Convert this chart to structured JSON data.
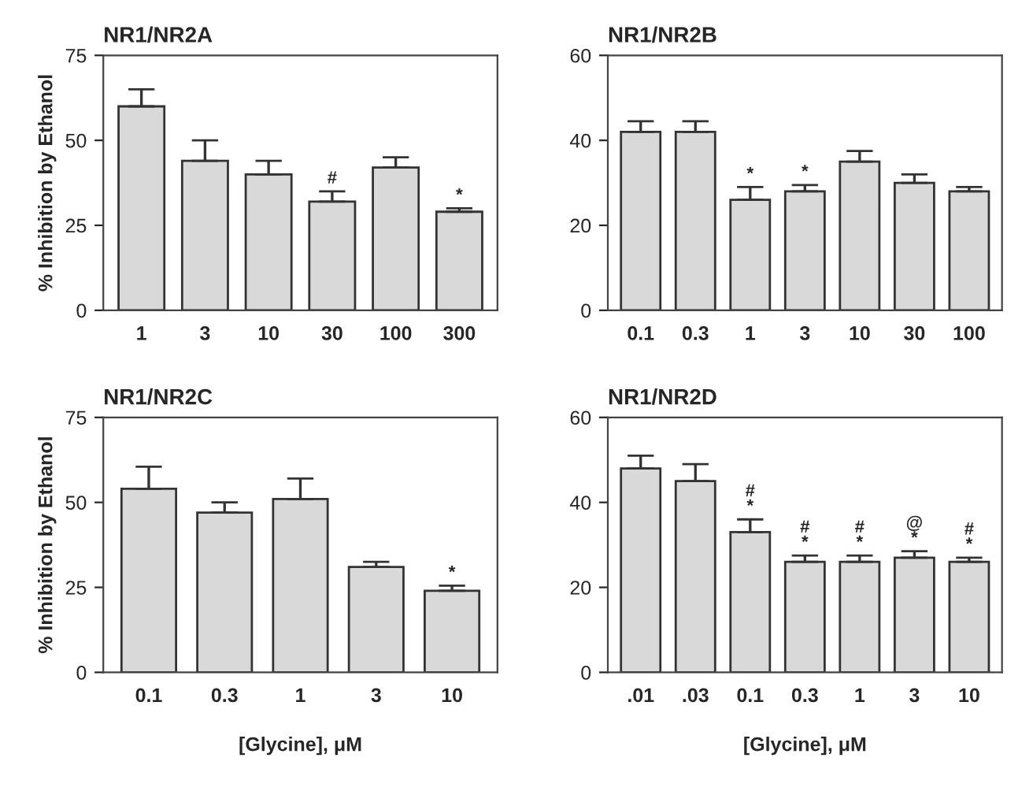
{
  "chart_data": [
    {
      "type": "bar",
      "title": "NR1/NR2A",
      "ylabel": "% Inhibition by Ethanol",
      "categories": [
        "1",
        "3",
        "10",
        "30",
        "100",
        "300"
      ],
      "values": [
        60,
        44,
        40,
        32,
        42,
        29
      ],
      "errors": [
        [
          60,
          65
        ],
        [
          44,
          50
        ],
        [
          40,
          44
        ],
        [
          32,
          35
        ],
        [
          42,
          45
        ],
        [
          29,
          30
        ]
      ],
      "color": "#d9d9d9",
      "ylim": [
        0,
        75
      ],
      "yticks": [
        0,
        25,
        50,
        75
      ],
      "grid": false,
      "annotations": [
        {
          "text": "#",
          "x": "30",
          "y": 35
        },
        {
          "text": "*",
          "x": "300",
          "y": 30
        }
      ]
    },
    {
      "type": "bar",
      "title": "NR1/NR2B",
      "categories": [
        "0.1",
        "0.3",
        "1",
        "3",
        "10",
        "30",
        "100"
      ],
      "values": [
        42,
        42,
        26,
        28,
        35,
        30,
        28
      ],
      "errors": [
        [
          42,
          44.5
        ],
        [
          42,
          44.5
        ],
        [
          26,
          29
        ],
        [
          28,
          29.5
        ],
        [
          35,
          37.5
        ],
        [
          30,
          32
        ],
        [
          28,
          29
        ]
      ],
      "color": "#d9d9d9",
      "ylim": [
        0,
        60
      ],
      "yticks": [
        0,
        20,
        40,
        60
      ],
      "grid": false,
      "annotations": [
        {
          "text": "*",
          "x": "1",
          "y": 29
        },
        {
          "text": "*",
          "x": "3",
          "y": 29.5
        }
      ]
    },
    {
      "type": "bar",
      "title": "NR1/NR2C",
      "ylabel": "% Inhibition by Ethanol",
      "xlabel": "[Glycine], μM",
      "categories": [
        "0.1",
        "0.3",
        "1",
        "3",
        "10"
      ],
      "values": [
        54,
        47,
        51,
        31,
        24
      ],
      "errors": [
        [
          54,
          60.5
        ],
        [
          47,
          50
        ],
        [
          51,
          57
        ],
        [
          31,
          32.5
        ],
        [
          24,
          25.5
        ]
      ],
      "color": "#d9d9d9",
      "ylim": [
        0,
        75
      ],
      "yticks": [
        0,
        25,
        50,
        75
      ],
      "grid": false,
      "annotations": [
        {
          "text": "*",
          "x": "10",
          "y": 25.5
        }
      ]
    },
    {
      "type": "bar",
      "title": "NR1/NR2D",
      "xlabel": "[Glycine], μM",
      "categories": [
        ".01",
        ".03",
        "0.1",
        "0.3",
        "1",
        "3",
        "10"
      ],
      "values": [
        48,
        45,
        33,
        26,
        26,
        27,
        26
      ],
      "errors": [
        [
          48,
          51
        ],
        [
          45,
          49
        ],
        [
          33,
          36
        ],
        [
          26,
          27.5
        ],
        [
          26,
          27.5
        ],
        [
          27,
          28.5
        ],
        [
          26,
          27
        ]
      ],
      "color": "#d9d9d9",
      "ylim": [
        0,
        60
      ],
      "yticks": [
        0,
        20,
        40,
        60
      ],
      "grid": false,
      "annotations": [
        {
          "text": "#\n*",
          "x": "0.1",
          "y": 36
        },
        {
          "text": "#\n*",
          "x": "0.3",
          "y": 27.5
        },
        {
          "text": "#\n*",
          "x": "1",
          "y": 27.5
        },
        {
          "text": "@\n*",
          "x": "3",
          "y": 28.5
        },
        {
          "text": "#\n*",
          "x": "10",
          "y": 27
        }
      ]
    }
  ]
}
